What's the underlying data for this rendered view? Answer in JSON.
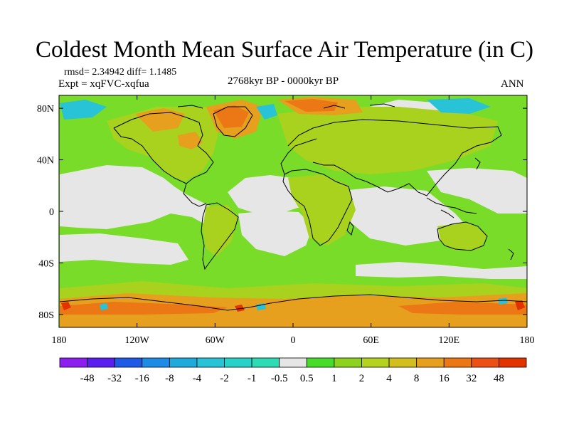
{
  "title": "Coldest Month Mean Surface Air Temperature (in C)",
  "stats": "rmsd= 2.34942  diff= 1.1485",
  "experiment": "Expt = xqFVC-xqfua",
  "period": "2768kyr BP - 0000kyr BP",
  "season": "ANN",
  "axes": {
    "lat_labels": [
      "80N",
      "40N",
      "0",
      "40S",
      "80S"
    ],
    "lat_values": [
      80,
      40,
      0,
      -40,
      -80
    ],
    "lon_labels": [
      "180",
      "120W",
      "60W",
      "0",
      "60E",
      "120E",
      "180"
    ],
    "lon_values": [
      -180,
      -120,
      -60,
      0,
      60,
      120,
      180
    ],
    "lat_range": [
      -90,
      90
    ],
    "lon_range": [
      -180,
      180
    ]
  },
  "colorbar": {
    "labels": [
      "-48",
      "-32",
      "-16",
      "-8",
      "-4",
      "-2",
      "-1",
      "-0.5",
      "0.5",
      "1",
      "2",
      "4",
      "8",
      "16",
      "32",
      "48"
    ],
    "colors": [
      "#8c1ff0",
      "#5a1ff0",
      "#1e5ae6",
      "#1e8ce6",
      "#1eaadc",
      "#28c3d7",
      "#28d2c8",
      "#2ddcb4",
      "#e6e6e6",
      "#46dc28",
      "#8cd21e",
      "#b4d21e",
      "#d2be1e",
      "#e6a01e",
      "#eb7814",
      "#eb5014",
      "#e13200"
    ]
  },
  "colors": {
    "ocean_green": "#78dc28",
    "land_yellow_green": "#a8d21e",
    "neutral": "#e6e6e6",
    "warm_orange": "#e6a01e",
    "hot_red": "#e13200",
    "cold_cyan": "#28c3d7",
    "coast": "#000000"
  }
}
